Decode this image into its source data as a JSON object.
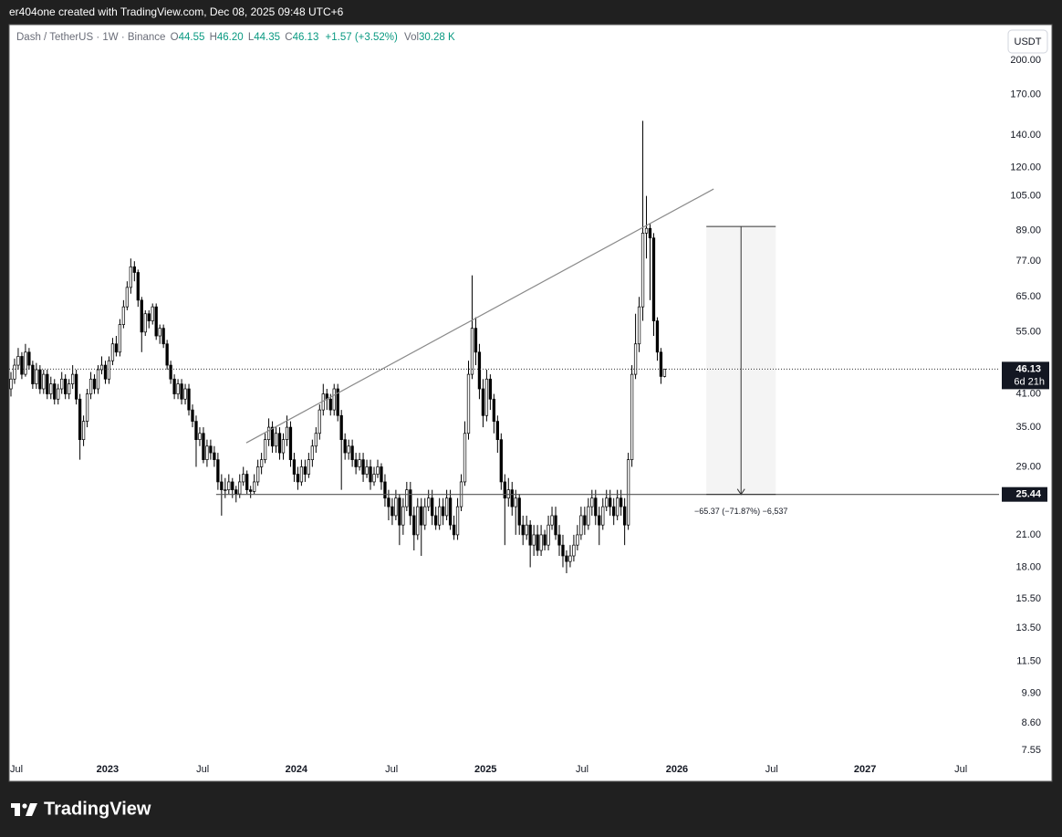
{
  "page_header": "er404one created with TradingView.com, Dec 08, 2025 09:48 UTC+6",
  "brand": "TradingView",
  "chart_data": {
    "type": "candlestick",
    "legend": {
      "symbol": "Dash / TetherUS · 1W · Binance",
      "items": [
        {
          "key": "O",
          "value": "44.55"
        },
        {
          "key": "H",
          "value": "46.20"
        },
        {
          "key": "L",
          "value": "44.35"
        },
        {
          "key": "C",
          "value": "46.13"
        }
      ],
      "change": "+1.57 (+3.52%)",
      "volume_key": "Vol",
      "volume": "30.28 K",
      "color": "#089981"
    },
    "currency": "USDT",
    "log_scale": true,
    "grid": false,
    "up_color": "#ffffff",
    "down_color": "#000000",
    "wick_color": "#000000",
    "xlim": [
      -0.5,
      272.1
    ],
    "xticks": [
      {
        "value": 0,
        "label": "Jul"
      },
      {
        "value": 26.6,
        "label": "2023"
      },
      {
        "value": 52.8,
        "label": "Jul"
      },
      {
        "value": 78.6,
        "label": "2024"
      },
      {
        "value": 104.8,
        "label": "Jul"
      },
      {
        "value": 130.7,
        "label": "2025"
      },
      {
        "value": 157.3,
        "label": "Jul"
      },
      {
        "value": 183.4,
        "label": "2026"
      },
      {
        "value": 209.5,
        "label": "Jul"
      },
      {
        "value": 235.2,
        "label": "2027"
      },
      {
        "value": 261.6,
        "label": "Jul"
      }
    ],
    "ylim": [
      7.29,
      235.8
    ],
    "yticks": [
      {
        "value": 200,
        "label": "200.00"
      },
      {
        "value": 170,
        "label": "170.00"
      },
      {
        "value": 140,
        "label": "140.00"
      },
      {
        "value": 120,
        "label": "120.00"
      },
      {
        "value": 105,
        "label": "105.00"
      },
      {
        "value": 89,
        "label": "89.00"
      },
      {
        "value": 77,
        "label": "77.00"
      },
      {
        "value": 65,
        "label": "65.00"
      },
      {
        "value": 55,
        "label": "55.00"
      },
      {
        "value": 41,
        "label": "41.00"
      },
      {
        "value": 35,
        "label": "35.00"
      },
      {
        "value": 29,
        "label": "29.00"
      },
      {
        "value": 21,
        "label": "21.00"
      },
      {
        "value": 18,
        "label": "18.00"
      },
      {
        "value": 15.5,
        "label": "15.50"
      },
      {
        "value": 13.5,
        "label": "13.50"
      },
      {
        "value": 11.5,
        "label": "11.50"
      },
      {
        "value": 9.9,
        "label": "9.90"
      },
      {
        "value": 8.6,
        "label": "8.60"
      },
      {
        "value": 7.55,
        "label": "7.55"
      }
    ],
    "candles": [
      [
        42,
        45.5,
        40.5,
        44
      ],
      [
        44,
        48.5,
        43,
        47
      ],
      [
        47,
        51,
        46,
        49
      ],
      [
        49,
        50,
        44,
        45
      ],
      [
        45,
        52,
        44.5,
        50
      ],
      [
        50,
        51,
        46,
        47
      ],
      [
        47,
        48,
        42,
        43
      ],
      [
        43,
        47.5,
        42,
        46
      ],
      [
        46,
        47,
        41,
        42
      ],
      [
        42,
        46,
        41,
        45
      ],
      [
        45,
        46,
        40,
        41
      ],
      [
        41,
        44.5,
        40,
        43
      ],
      [
        43,
        44,
        39,
        40
      ],
      [
        40,
        43,
        39,
        42
      ],
      [
        42,
        45.5,
        41,
        44
      ],
      [
        44,
        45,
        40,
        41
      ],
      [
        41,
        44,
        40,
        43
      ],
      [
        43,
        47,
        42,
        45
      ],
      [
        45,
        46,
        39,
        40
      ],
      [
        40,
        41,
        30,
        33
      ],
      [
        33,
        37,
        32,
        36
      ],
      [
        36,
        42,
        35,
        41
      ],
      [
        41,
        45.5,
        40,
        44
      ],
      [
        44,
        45,
        41,
        42
      ],
      [
        42,
        47,
        41,
        46
      ],
      [
        46,
        49,
        45,
        47
      ],
      [
        47,
        48,
        43,
        44
      ],
      [
        44,
        49,
        43,
        48
      ],
      [
        48,
        53.5,
        47,
        52
      ],
      [
        52,
        54,
        49,
        50
      ],
      [
        50,
        58.5,
        49,
        57
      ],
      [
        57,
        64,
        56,
        62
      ],
      [
        62,
        70,
        61,
        68
      ],
      [
        68,
        78,
        66,
        75
      ],
      [
        75,
        77,
        70,
        73
      ],
      [
        73,
        74,
        62,
        64
      ],
      [
        64,
        65,
        50,
        55
      ],
      [
        55,
        61,
        54,
        60
      ],
      [
        60,
        61,
        56,
        58
      ],
      [
        58,
        63,
        57,
        62
      ],
      [
        62,
        63,
        53,
        54
      ],
      [
        54,
        57,
        52,
        56
      ],
      [
        56,
        57,
        51,
        52
      ],
      [
        52,
        53,
        46,
        47
      ],
      [
        47,
        48,
        43,
        44
      ],
      [
        44,
        45,
        40,
        41
      ],
      [
        41,
        44,
        40,
        43
      ],
      [
        43,
        44,
        39,
        40
      ],
      [
        40,
        43,
        39,
        42
      ],
      [
        42,
        43,
        37,
        38
      ],
      [
        38,
        39,
        35,
        36
      ],
      [
        36,
        37,
        29,
        33
      ],
      [
        33,
        35,
        32,
        34
      ],
      [
        34,
        35,
        29.5,
        30
      ],
      [
        30,
        33,
        29,
        32
      ],
      [
        32,
        33,
        30,
        31
      ],
      [
        31,
        32,
        29,
        30
      ],
      [
        30,
        31,
        26,
        27
      ],
      [
        27,
        28,
        23,
        26
      ],
      [
        26,
        27.5,
        25,
        26
      ],
      [
        26,
        28,
        25.5,
        27
      ],
      [
        27,
        27.5,
        25,
        26
      ],
      [
        26,
        26.5,
        24.5,
        25.5
      ],
      [
        25.5,
        28,
        25,
        27
      ],
      [
        27,
        29,
        26.5,
        28
      ],
      [
        28,
        28.5,
        25.5,
        26
      ],
      [
        26,
        26.5,
        25,
        25.8
      ],
      [
        25.8,
        28,
        25.5,
        27
      ],
      [
        27,
        30,
        26.5,
        29
      ],
      [
        29,
        31,
        28,
        30
      ],
      [
        30,
        34,
        29.5,
        33
      ],
      [
        33,
        36.5,
        32,
        35
      ],
      [
        35,
        36,
        31,
        32
      ],
      [
        32,
        35,
        31,
        34
      ],
      [
        34,
        35,
        30,
        31
      ],
      [
        31,
        34,
        30,
        33
      ],
      [
        33,
        37,
        32,
        35
      ],
      [
        35,
        36,
        29,
        30
      ],
      [
        30,
        31,
        27,
        28
      ],
      [
        28,
        29,
        26,
        27
      ],
      [
        27,
        30,
        26.5,
        29
      ],
      [
        29,
        30,
        27,
        28
      ],
      [
        28,
        31,
        27.5,
        30
      ],
      [
        30,
        33,
        29,
        32
      ],
      [
        32,
        35,
        31,
        34
      ],
      [
        34,
        39,
        33,
        38
      ],
      [
        38,
        43,
        37,
        41
      ],
      [
        41,
        42,
        38,
        40
      ],
      [
        40,
        41,
        37,
        38
      ],
      [
        38,
        43,
        37,
        42
      ],
      [
        42,
        43,
        36,
        37
      ],
      [
        37,
        38,
        26,
        33
      ],
      [
        33,
        34,
        30,
        31
      ],
      [
        31,
        33,
        30,
        32
      ],
      [
        32,
        33,
        29,
        30
      ],
      [
        30,
        31,
        28,
        29
      ],
      [
        29,
        31,
        28.5,
        30
      ],
      [
        30,
        31,
        27,
        28
      ],
      [
        28,
        30,
        27.5,
        29
      ],
      [
        29,
        30,
        26,
        27
      ],
      [
        27,
        29,
        26.5,
        28
      ],
      [
        28,
        30,
        27.5,
        29
      ],
      [
        29,
        29.5,
        26,
        27
      ],
      [
        27,
        28,
        24,
        25
      ],
      [
        25,
        26,
        22.5,
        24
      ],
      [
        24,
        25,
        22,
        23
      ],
      [
        23,
        26,
        22.5,
        25
      ],
      [
        25,
        25.5,
        20,
        22
      ],
      [
        22,
        25,
        21,
        24
      ],
      [
        24,
        27,
        23.5,
        26
      ],
      [
        26,
        27,
        22,
        23
      ],
      [
        23,
        24,
        19.5,
        21
      ],
      [
        21,
        25,
        20.5,
        24
      ],
      [
        24,
        25,
        19,
        22
      ],
      [
        22,
        25,
        21.5,
        24
      ],
      [
        24,
        26,
        23.5,
        25
      ],
      [
        25,
        26,
        22,
        23
      ],
      [
        23,
        24,
        21.5,
        22
      ],
      [
        22,
        25,
        21.5,
        24
      ],
      [
        24,
        25,
        22,
        23
      ],
      [
        23,
        26,
        22.5,
        25
      ],
      [
        25,
        26,
        21.5,
        22
      ],
      [
        22,
        23,
        20.5,
        21
      ],
      [
        21,
        25,
        20.5,
        24
      ],
      [
        24,
        28,
        23.5,
        27
      ],
      [
        27,
        36,
        26.5,
        34
      ],
      [
        34,
        48,
        33,
        45
      ],
      [
        45,
        72,
        44,
        56
      ],
      [
        56,
        59,
        47,
        50
      ],
      [
        50,
        52,
        40,
        42
      ],
      [
        42,
        44,
        35,
        37
      ],
      [
        37,
        46,
        36,
        44
      ],
      [
        44,
        45,
        38,
        40
      ],
      [
        40,
        41,
        34,
        36
      ],
      [
        36,
        37,
        31,
        33
      ],
      [
        33,
        34,
        26,
        27
      ],
      [
        27,
        28,
        20,
        25
      ],
      [
        25,
        27.5,
        24,
        26
      ],
      [
        26,
        27,
        23,
        24
      ],
      [
        24,
        26,
        21,
        25
      ],
      [
        25,
        25.5,
        21,
        22
      ],
      [
        22,
        23,
        20,
        21
      ],
      [
        21,
        23,
        20.5,
        22
      ],
      [
        22,
        22.5,
        18,
        20
      ],
      [
        20,
        22,
        19,
        21
      ],
      [
        21,
        22,
        19,
        19.5
      ],
      [
        19.5,
        22,
        19,
        21
      ],
      [
        21,
        21.5,
        19.5,
        20
      ],
      [
        20,
        23,
        19.5,
        22
      ],
      [
        22,
        24,
        21.5,
        23
      ],
      [
        23,
        24,
        20.5,
        21
      ],
      [
        21,
        22,
        19,
        20
      ],
      [
        20,
        21,
        18,
        19
      ],
      [
        19,
        19.5,
        17.5,
        18.5
      ],
      [
        18.5,
        20,
        18,
        19
      ],
      [
        19,
        21,
        18.5,
        20
      ],
      [
        20,
        22,
        19.5,
        21
      ],
      [
        21,
        24,
        20.5,
        23
      ],
      [
        23,
        24,
        21,
        22
      ],
      [
        22,
        25,
        21.5,
        24
      ],
      [
        24,
        26,
        23,
        25
      ],
      [
        25,
        26,
        22,
        23
      ],
      [
        23,
        24,
        20,
        22
      ],
      [
        22,
        25,
        21.5,
        24
      ],
      [
        24,
        26,
        23.5,
        25
      ],
      [
        25,
        26,
        23,
        24
      ],
      [
        24,
        25,
        22,
        23
      ],
      [
        23,
        26,
        22.5,
        25
      ],
      [
        25,
        26,
        23,
        24
      ],
      [
        24,
        25,
        20,
        22
      ],
      [
        22,
        31,
        21.5,
        30
      ],
      [
        30,
        47,
        29,
        45
      ],
      [
        45,
        60,
        44,
        52
      ],
      [
        52,
        65,
        50,
        62
      ],
      [
        62,
        150,
        58,
        88
      ],
      [
        88,
        105,
        78,
        90
      ],
      [
        90,
        92,
        64,
        86
      ],
      [
        86,
        88,
        54,
        58
      ],
      [
        58,
        59,
        48,
        50
      ],
      [
        50,
        51,
        43,
        44.55
      ],
      [
        44.55,
        46.2,
        44.35,
        46.13
      ]
    ],
    "countdown": "6d 21h",
    "trendline": {
      "x": [
        64.8,
        193.5
      ],
      "y": [
        32.5,
        108.5
      ]
    },
    "hline": {
      "x_start": 56.5,
      "value": 25.44
    },
    "measure": {
      "x": [
        191.5,
        210.6
      ],
      "from": 90.81,
      "to": 25.44,
      "label": "−65.37 (−71.87%) −6,537"
    }
  }
}
